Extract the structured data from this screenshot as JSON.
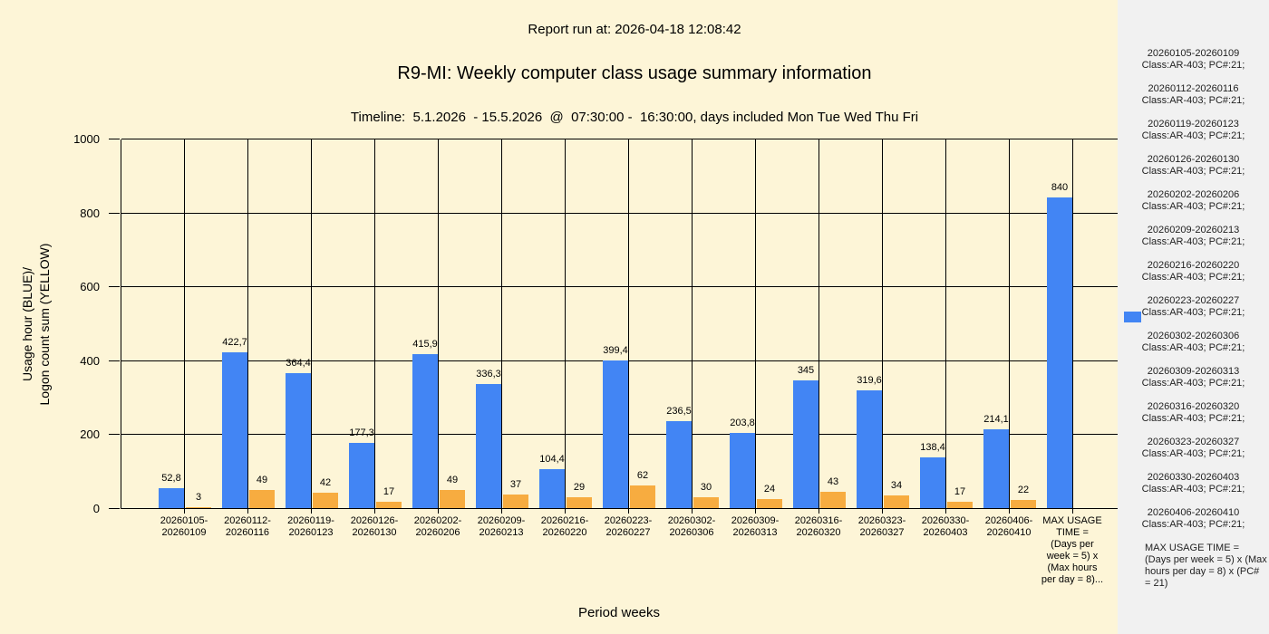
{
  "page": {
    "background": "#FDF5D7",
    "sidebar_background": "#F1F1F1"
  },
  "header": {
    "report_run": "Report run at: 2026-04-18 12:08:42",
    "title": "R9-MI: Weekly computer class usage summary information",
    "timeline": "Timeline:  5.1.2026  - 15.5.2026  @  07:30:00 -  16:30:00, days included Mon Tue Wed Thu Fri"
  },
  "chart_data": {
    "type": "bar",
    "title": "R9-MI: Weekly computer class usage summary information",
    "xlabel": "Period weeks",
    "ylabel_line1": "Usage hour (BLUE)/",
    "ylabel_line2": "Logon count sum (YELLOW)",
    "ylim": [
      0,
      1000
    ],
    "yticks": [
      0,
      200,
      400,
      600,
      800,
      1000
    ],
    "grid": true,
    "legend_position": "right",
    "categories": [
      "20260105-20260109",
      "20260112-20260116",
      "20260119-20260123",
      "20260126-20260130",
      "20260202-20260206",
      "20260209-20260213",
      "20260216-20260220",
      "20260223-20260227",
      "20260302-20260306",
      "20260309-20260313",
      "20260316-20260320",
      "20260323-20260327",
      "20260330-20260403",
      "20260406-20260410",
      "MAX USAGE TIME = (Days per week = 5) x (Max hours per day = 8)..."
    ],
    "x_tick_label_lines": [
      [
        "20260105-",
        "20260109"
      ],
      [
        "20260112-",
        "20260116"
      ],
      [
        "20260119-",
        "20260123"
      ],
      [
        "20260126-",
        "20260130"
      ],
      [
        "20260202-",
        "20260206"
      ],
      [
        "20260209-",
        "20260213"
      ],
      [
        "20260216-",
        "20260220"
      ],
      [
        "20260223-",
        "20260227"
      ],
      [
        "20260302-",
        "20260306"
      ],
      [
        "20260309-",
        "20260313"
      ],
      [
        "20260316-",
        "20260320"
      ],
      [
        "20260323-",
        "20260327"
      ],
      [
        "20260330-",
        "20260403"
      ],
      [
        "20260406-",
        "20260410"
      ],
      [
        "MAX USAGE",
        "TIME =",
        "(Days per",
        "week = 5) x",
        "(Max hours",
        "per day = 8)..."
      ]
    ],
    "series": [
      {
        "name": "Usage hour",
        "color": "#4285F4",
        "values": [
          52.8,
          422.7,
          364.4,
          177.3,
          415.9,
          336.3,
          104.4,
          399.4,
          236.5,
          203.8,
          345,
          319.6,
          138.4,
          214.1,
          840
        ],
        "value_labels": [
          "52,8",
          "422,7",
          "364,4",
          "177,3",
          "415,9",
          "336,3",
          "104,4",
          "399,4",
          "236,5",
          "203,8",
          "345",
          "319,6",
          "138,4",
          "214,1",
          "840"
        ]
      },
      {
        "name": "Logon count sum",
        "color": "#F7AC40",
        "values": [
          3,
          49,
          42,
          17,
          49,
          37,
          29,
          62,
          30,
          24,
          43,
          34,
          17,
          22,
          null
        ],
        "value_labels": [
          "3",
          "49",
          "42",
          "17",
          "49",
          "37",
          "29",
          "62",
          "30",
          "24",
          "43",
          "34",
          "17",
          "22",
          null
        ]
      }
    ]
  },
  "sidebar": {
    "legend_marker_color": "#4285F4",
    "entries": [
      {
        "period": "20260105-20260109",
        "detail": "Class:AR-403; PC#:21;"
      },
      {
        "period": "20260112-20260116",
        "detail": "Class:AR-403; PC#:21;"
      },
      {
        "period": "20260119-20260123",
        "detail": "Class:AR-403; PC#:21;"
      },
      {
        "period": "20260126-20260130",
        "detail": "Class:AR-403; PC#:21;"
      },
      {
        "period": "20260202-20260206",
        "detail": "Class:AR-403; PC#:21;"
      },
      {
        "period": "20260209-20260213",
        "detail": "Class:AR-403; PC#:21;"
      },
      {
        "period": "20260216-20260220",
        "detail": "Class:AR-403; PC#:21;"
      },
      {
        "period": "20260223-20260227",
        "detail": "Class:AR-403; PC#:21;"
      },
      {
        "period": "20260302-20260306",
        "detail": "Class:AR-403; PC#:21;"
      },
      {
        "period": "20260309-20260313",
        "detail": "Class:AR-403; PC#:21;"
      },
      {
        "period": "20260316-20260320",
        "detail": "Class:AR-403; PC#:21;"
      },
      {
        "period": "20260323-20260327",
        "detail": "Class:AR-403; PC#:21;"
      },
      {
        "period": "20260330-20260403",
        "detail": "Class:AR-403; PC#:21;"
      },
      {
        "period": "20260406-20260410",
        "detail": "Class:AR-403; PC#:21;"
      }
    ],
    "max_note_lines": [
      "MAX USAGE TIME =",
      " (Days per week = 5) x (Max",
      "hours per day = 8) x (PC#",
      "= 21)"
    ]
  }
}
